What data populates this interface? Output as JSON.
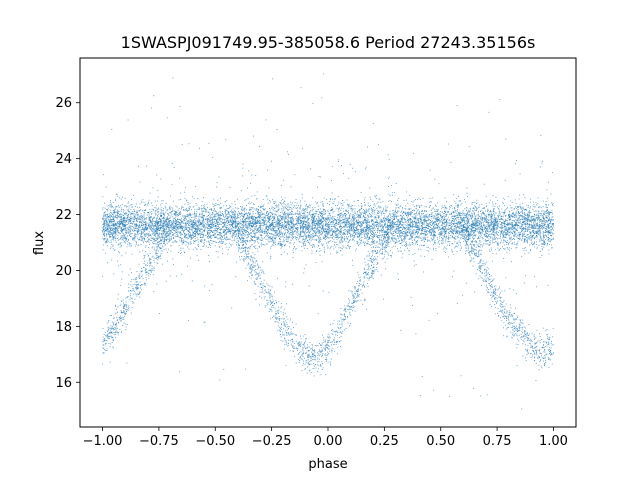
{
  "chart_data": {
    "type": "scatter",
    "title": "1SWASPJ091749.95-385058.6 Period 27243.35156s",
    "xlabel": "phase",
    "ylabel": "flux",
    "xlim": [
      -1.1,
      1.1
    ],
    "ylim": [
      14.4,
      27.6
    ],
    "x_ticks": [
      -1.0,
      -0.75,
      -0.5,
      -0.25,
      0.0,
      0.25,
      0.5,
      0.75,
      1.0
    ],
    "x_tick_labels": [
      "−1.00",
      "−0.75",
      "−0.50",
      "−0.25",
      "0.00",
      "0.25",
      "0.50",
      "0.75",
      "1.00"
    ],
    "y_ticks": [
      16,
      18,
      20,
      22,
      24,
      26
    ],
    "y_tick_labels": [
      "16",
      "18",
      "20",
      "22",
      "24",
      "26"
    ],
    "grid": false,
    "legend": "none",
    "marker_color": "#1f77b4",
    "series": [
      {
        "description_points": "phase-folded light curve; dense band near flux 21.6 across all phases, with eclipse dips",
        "x": [
          -1.0,
          -0.975,
          -0.95,
          -0.9,
          -0.85,
          -0.8,
          -0.75,
          -0.7,
          -0.6,
          -0.5,
          -0.45,
          -0.4,
          -0.35,
          -0.3,
          -0.25,
          -0.2,
          -0.15,
          -0.1,
          -0.075,
          -0.05,
          -0.025,
          0.0,
          0.025,
          0.05,
          0.1,
          0.15,
          0.2,
          0.25,
          0.3,
          0.4,
          0.5,
          0.55,
          0.6,
          0.65,
          0.7,
          0.75,
          0.8,
          0.85,
          0.9,
          0.925,
          0.95,
          0.975,
          1.0
        ],
        "y": [
          17.4,
          17.6,
          17.9,
          18.6,
          19.4,
          20.1,
          20.8,
          21.5,
          21.6,
          21.6,
          21.6,
          21.2,
          20.4,
          19.6,
          18.8,
          18.0,
          17.4,
          17.0,
          16.9,
          16.9,
          17.0,
          17.2,
          17.5,
          17.9,
          18.7,
          19.5,
          20.3,
          21.0,
          21.5,
          21.6,
          21.6,
          21.6,
          21.3,
          20.6,
          19.8,
          19.0,
          18.3,
          17.7,
          17.3,
          17.2,
          17.1,
          17.2,
          17.3
        ]
      }
    ]
  }
}
